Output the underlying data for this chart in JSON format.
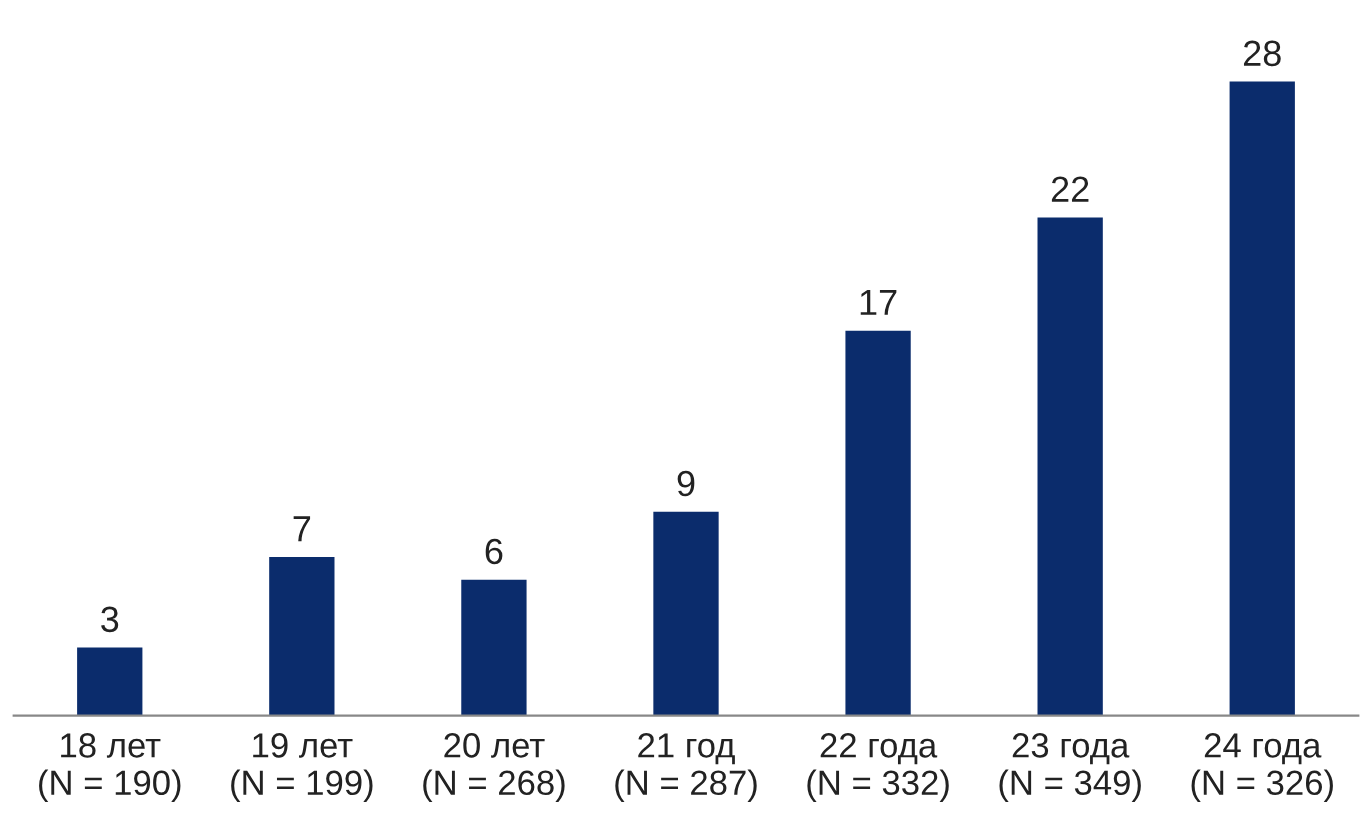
{
  "chart_data": {
    "type": "bar",
    "categories": [
      "18 лет\n(N = 190)",
      "19 лет\n(N = 199)",
      "20 лет\n(N = 268)",
      "21 год\n(N = 287)",
      "22 года\n(N = 332)",
      "23 года\n(N = 349)",
      "24 года\n(N = 326)"
    ],
    "values": [
      3,
      7,
      6,
      9,
      17,
      22,
      28
    ],
    "color": "#0b2c6c",
    "data_labels": true,
    "grid": false,
    "legend": false,
    "tick_labels": "x"
  }
}
